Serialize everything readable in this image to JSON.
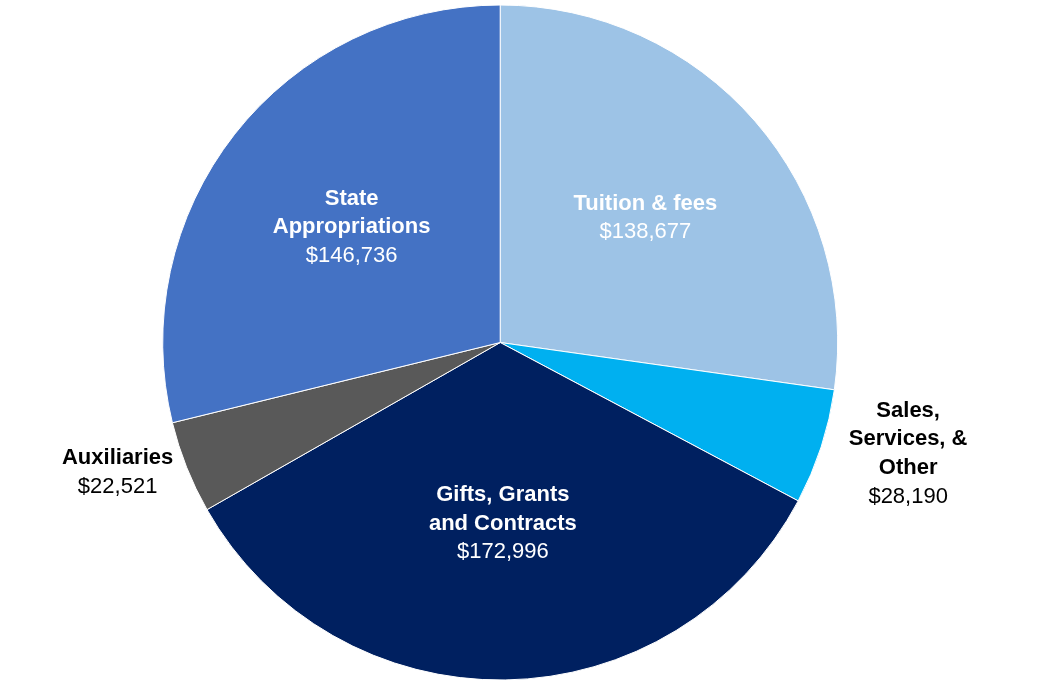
{
  "chart_data": {
    "type": "pie",
    "categories": [
      "Tuition & fees",
      "Sales, Services, & Other",
      "Gifts, Grants and Contracts",
      "Auxiliaries",
      "State Appropriations"
    ],
    "values": [
      138677,
      28190,
      172996,
      22521,
      146736
    ],
    "value_labels": [
      "$138,677",
      "$28,190",
      "$172,996",
      "$22,521",
      "$146,736"
    ],
    "colors": [
      "#9dc3e6",
      "#00b0f0",
      "#002060",
      "#595959",
      "#4472c4"
    ],
    "legend": false
  }
}
